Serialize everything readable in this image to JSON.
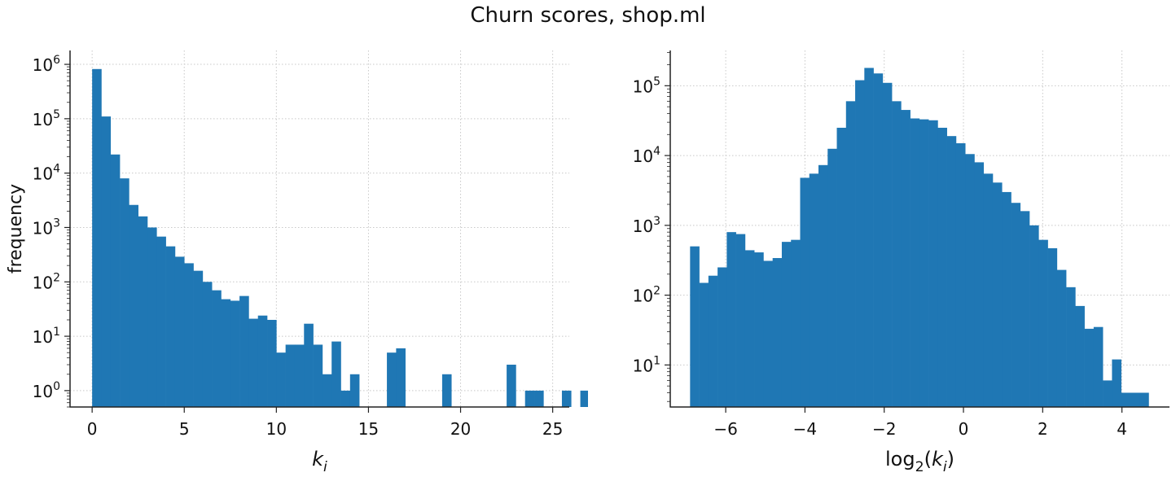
{
  "figure": {
    "title": "Churn scores, shop.ml"
  },
  "colors": {
    "bar": "#1f77b4",
    "grid": "#c8c8c8",
    "axis": "#222222"
  },
  "chart_data": [
    {
      "type": "bar",
      "title": "",
      "xlabel": "k_i",
      "ylabel": "frequency",
      "yscale": "log",
      "grid": true,
      "xlim": [
        -1.2,
        25.9
      ],
      "ylim": [
        0.5,
        1800000
      ],
      "xticks": [
        0,
        5,
        10,
        15,
        20,
        25
      ],
      "yticks": [
        1,
        10,
        100,
        1000,
        10000,
        100000,
        1000000
      ],
      "bin_start": 0,
      "bin_width": 0.5,
      "values": [
        820000,
        110000,
        22000,
        8000,
        2600,
        1600,
        1000,
        680,
        450,
        290,
        220,
        160,
        100,
        70,
        48,
        45,
        55,
        21,
        24,
        20,
        5,
        7,
        7,
        17,
        7,
        2,
        8,
        1,
        2,
        0,
        0,
        0,
        5,
        6,
        0,
        0,
        0,
        0,
        2,
        0,
        0,
        0,
        0,
        0,
        0,
        3,
        0,
        1,
        1,
        0,
        0,
        1,
        0,
        1
      ]
    },
    {
      "type": "bar",
      "title": "",
      "xlabel": "log2(k_i)",
      "ylabel": "",
      "yscale": "log",
      "grid": true,
      "xlim": [
        -7.4,
        5.2
      ],
      "ylim": [
        2.5,
        320000
      ],
      "xticks": [
        -6,
        -4,
        -2,
        0,
        2,
        4
      ],
      "yticks": [
        10,
        100,
        1000,
        10000,
        100000
      ],
      "bin_start": -6.9,
      "bin_width": 0.2315,
      "values": [
        500,
        150,
        190,
        250,
        800,
        750,
        440,
        410,
        310,
        340,
        580,
        620,
        4800,
        5500,
        7300,
        12500,
        25000,
        60000,
        120000,
        180000,
        150000,
        110000,
        60000,
        45000,
        34000,
        33000,
        32000,
        25000,
        19000,
        15000,
        10500,
        8000,
        5500,
        4100,
        3000,
        2100,
        1600,
        1000,
        620,
        470,
        230,
        130,
        70,
        33,
        35,
        6,
        12,
        4,
        4,
        4
      ]
    }
  ]
}
